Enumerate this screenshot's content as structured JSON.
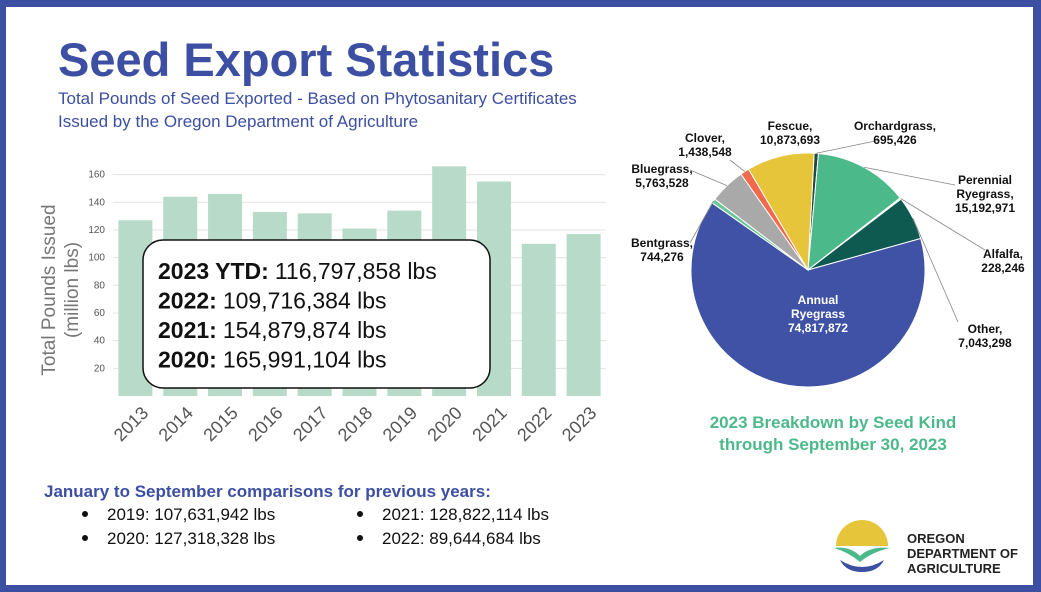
{
  "title": "Seed Export Statistics",
  "subtitle": [
    "Total Pounds of Seed Exported - Based on Phytosanitary Certificates",
    "Issued by the Oregon Department of Agriculture"
  ],
  "callout": [
    {
      "label": "2023 YTD:",
      "value": "116,797,858 lbs"
    },
    {
      "label": "2022:",
      "value": "109,716,384 lbs"
    },
    {
      "label": "2021:",
      "value": "154,879,874 lbs"
    },
    {
      "label": "2020:",
      "value": "165,991,104 lbs"
    }
  ],
  "comparisons": {
    "heading": "January to September comparisons for previous years:",
    "items": [
      "2019: 107,631,942 lbs",
      "2020: 127,318,328 lbs",
      "2021: 128,822,114 lbs",
      "2022: 89,644,684 lbs"
    ]
  },
  "logo": [
    "OREGON",
    "DEPARTMENT OF",
    "AGRICULTURE"
  ],
  "chart_data": [
    {
      "type": "bar",
      "ylabel": [
        "Total Pounds Issued",
        "(million lbs)"
      ],
      "categories": [
        "2013",
        "2014",
        "2015",
        "2016",
        "2017",
        "2018",
        "2019",
        "2020",
        "2021",
        "2022",
        "2023"
      ],
      "values": [
        127,
        144,
        146,
        133,
        132,
        121,
        134,
        166,
        155,
        110,
        117
      ],
      "color": "#b8dbc9",
      "ylim": [
        0,
        172
      ],
      "yticks": [
        20,
        40,
        60,
        80,
        100,
        120,
        140,
        160
      ],
      "grid": true
    },
    {
      "type": "pie",
      "title": [
        "2023 Breakdown by Seed Kind",
        "through September 30, 2023"
      ],
      "categories": [
        "Orchardgrass,",
        "Perennial Ryegrass,",
        "Alfalfa,",
        "Other,",
        "Annual Ryegrass",
        "Bentgrass,",
        "Bluegrass,",
        "Clover,",
        "Fescue,"
      ],
      "values": [
        695426,
        15192971,
        228246,
        7043298,
        74817872,
        744276,
        5763528,
        1438548,
        10873693
      ],
      "value_labels": [
        "695,426",
        "15,192,971",
        "228,246",
        "7,043,298",
        "74,817,872",
        "744,276",
        "5,763,528",
        "1,438,548",
        "10,873,693"
      ],
      "colors": [
        "#1f4a3c",
        "#4cb98b",
        "#c9e6d7",
        "#0e5a50",
        "#3f52a6",
        "#6cc49a",
        "#a9a9a9",
        "#f2694e",
        "#e6c53b"
      ]
    }
  ]
}
